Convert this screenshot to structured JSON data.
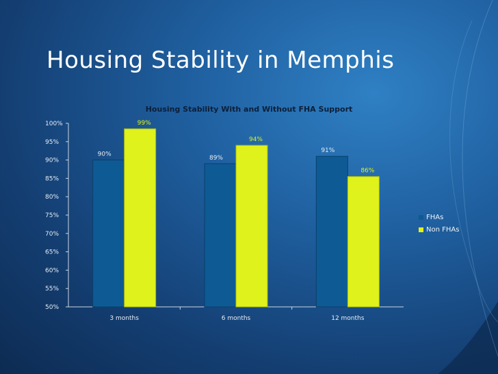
{
  "slide": {
    "title": "Housing Stability in Memphis"
  },
  "colors": {
    "fha": "#0e5a94",
    "non_fha": "#dff21b"
  },
  "chart_data": {
    "type": "bar",
    "title": "Housing Stability With and Without FHA Support",
    "categories": [
      "3 months",
      "6 months",
      "12 months"
    ],
    "series": [
      {
        "name": "FHAs",
        "values": [
          90,
          89,
          91
        ],
        "labels": [
          "90%",
          "89%",
          "91%"
        ]
      },
      {
        "name": "Non FHAs",
        "values": [
          98.5,
          94,
          85.5
        ],
        "labels": [
          "99%",
          "94%",
          "86%"
        ]
      }
    ],
    "ylim": [
      50,
      100
    ],
    "yticks": [
      "50%",
      "55%",
      "60%",
      "65%",
      "70%",
      "75%",
      "80%",
      "85%",
      "90%",
      "95%",
      "100%"
    ],
    "xlabel": "",
    "ylabel": "",
    "grid": false,
    "legend_position": "right"
  }
}
